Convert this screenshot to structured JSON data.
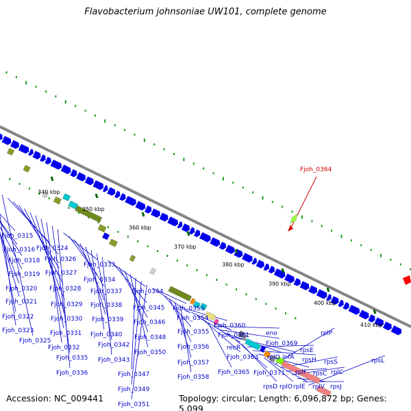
{
  "title": "Flavobacterium johnsoniae UW101, complete genome",
  "accession": "Accession: NC_009441",
  "topology": "Topology: circular; Length: 6,096,872 bp; Genes: 5,099",
  "highlight_label": "Fjoh_0364",
  "ticks": [
    {
      "label": "340 kbp"
    },
    {
      "label": "350 kbp"
    },
    {
      "label": "360 kbp"
    },
    {
      "label": "370 kbp"
    },
    {
      "label": "380 kbp"
    },
    {
      "label": "390 kbp"
    },
    {
      "label": "400 kbp"
    },
    {
      "label": "410 kbp"
    }
  ],
  "gene_labels": [
    "Fjoh_0315",
    "Fjoh_0316",
    "Fjoh_0318",
    "Fjoh_0319",
    "Fjoh_0320",
    "Fjoh_0321",
    "Fjoh_0322",
    "Fjoh_0323",
    "Fjoh_0325",
    "Fjoh_0324",
    "Fjoh_0326",
    "Fjoh_0327",
    "Fjoh_0328",
    "Fjoh_0329",
    "Fjoh_0330",
    "Fjoh_0331",
    "Fjoh_0332",
    "Fjoh_0335",
    "Fjoh_0336",
    "Fjoh_0333",
    "Fjoh_0334",
    "Fjoh_0337",
    "Fjoh_0338",
    "Fjoh_0339",
    "Fjoh_0340",
    "Fjoh_0342",
    "Fjoh_0343",
    "Fjoh_0344",
    "Fjoh_0345",
    "Fjoh_0346",
    "Fjoh_0348",
    "Fjoh_0350",
    "Fjoh_0347",
    "Fjoh_0349",
    "Fjoh_0351",
    "Fjoh_0353",
    "Fjoh_0354",
    "Fjoh_0355",
    "Fjoh_0356",
    "Fjoh_0357",
    "Fjoh_0358",
    "Fjoh_0360",
    "Fjoh_0361",
    "recR",
    "Fjoh_0363",
    "Fjoh_0365",
    "eno",
    "Fjoh_0369",
    "rplQ",
    "infA",
    "Fjoh_0371",
    "rpsD",
    "rpsE",
    "rpsH",
    "rplF",
    "rplO",
    "rplE",
    "rplP",
    "rpsS",
    "rpsC",
    "rplC",
    "rplV",
    "rpsJ",
    "rpsL"
  ],
  "colors": {
    "backbone": "#808080",
    "gene_blue": "#0000ee",
    "tick_green": "#006400",
    "gc_dots": "#1a9a1a",
    "highlight_red": "#d40000",
    "olive": "#8a9a2a",
    "label_blue": "#0000cc"
  }
}
